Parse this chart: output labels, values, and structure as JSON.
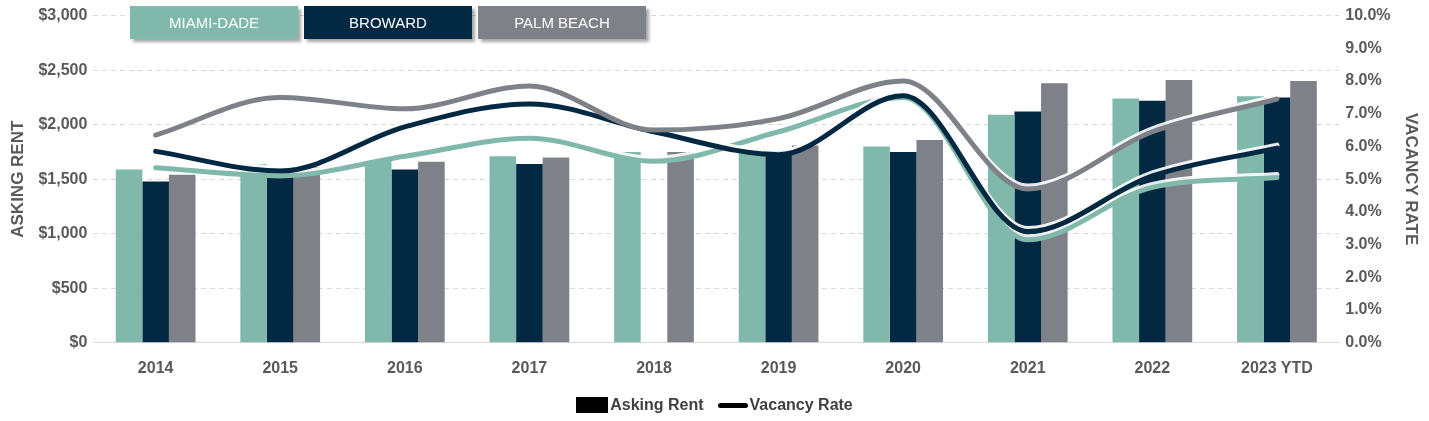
{
  "chart_data": {
    "type": "bar",
    "categories": [
      "2014",
      "2015",
      "2016",
      "2017",
      "2018",
      "2019",
      "2020",
      "2021",
      "2022",
      "2023 YTD"
    ],
    "series": [
      {
        "name": "MIAMI-DADE",
        "color": "#80b9ab",
        "values": [
          1590,
          1640,
          1670,
          1710,
          1750,
          1780,
          1800,
          2090,
          2240,
          2260
        ]
      },
      {
        "name": "BROWARD",
        "color": "#032842",
        "values": [
          1480,
          1600,
          1590,
          1640,
          null,
          1760,
          1750,
          2120,
          2220,
          2250
        ]
      },
      {
        "name": "PALM BEACH",
        "color": "#7f8189",
        "values": [
          1540,
          1610,
          1660,
          1700,
          1750,
          1810,
          1860,
          2380,
          2410,
          2400
        ]
      },
      {
        "type": "line",
        "axis": "y2",
        "color": "#80b9ab",
        "values": [
          5.35,
          5.1,
          5.7,
          6.25,
          5.55,
          6.45,
          7.5,
          3.15,
          4.75,
          5.05
        ]
      },
      {
        "type": "line",
        "axis": "y2",
        "color": "#032842",
        "values": [
          5.85,
          5.25,
          6.6,
          7.3,
          6.45,
          5.75,
          7.55,
          3.4,
          5.1,
          5.95
        ]
      },
      {
        "type": "line",
        "axis": "y2",
        "color": "#7f8189",
        "values": [
          6.35,
          7.5,
          7.15,
          7.85,
          6.5,
          6.85,
          8.0,
          4.7,
          6.45,
          7.45
        ]
      }
    ],
    "ylabel": "ASKING RENT",
    "y2label": "VACANCY RATE",
    "ylim": [
      0,
      3000
    ],
    "yticks": [
      {
        "value": 0,
        "label": "$0"
      },
      {
        "value": 500,
        "label": "$500"
      },
      {
        "value": 1000,
        "label": "$1,000"
      },
      {
        "value": 1500,
        "label": "$1,500"
      },
      {
        "value": 2000,
        "label": "$2,000"
      },
      {
        "value": 2500,
        "label": "$2,500"
      },
      {
        "value": 3000,
        "label": "$3,000"
      }
    ],
    "y2lim": [
      0,
      10
    ],
    "y2ticks": [
      {
        "value": 0,
        "label": "0.0%"
      },
      {
        "value": 1,
        "label": "1.0%"
      },
      {
        "value": 2,
        "label": "2.0%"
      },
      {
        "value": 3,
        "label": "3.0%"
      },
      {
        "value": 4,
        "label": "4.0%"
      },
      {
        "value": 5,
        "label": "5.0%"
      },
      {
        "value": 6,
        "label": "6.0%"
      },
      {
        "value": 7,
        "label": "7.0%"
      },
      {
        "value": 8,
        "label": "8.0%"
      },
      {
        "value": 9,
        "label": "9.0%"
      },
      {
        "value": 10,
        "label": "10.0%"
      }
    ],
    "grid": "y",
    "legend": "top left",
    "marker": "none",
    "line_style": "solid",
    "annotations": [
      "Asking Rent",
      "Vacancy Rate"
    ]
  }
}
